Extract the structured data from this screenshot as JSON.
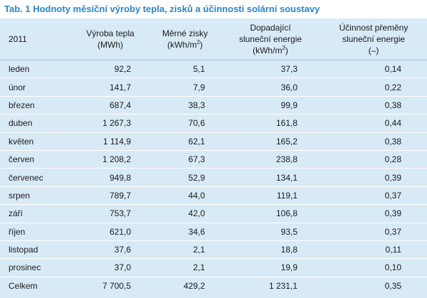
{
  "caption": "Tab. 1 Hodnoty měsíční výroby tepla, zisků a účinnosti solární soustavy",
  "header": {
    "year": "2011",
    "production_l1": "Výroba tepla",
    "production_l2": "(MWh)",
    "specific_l1": "Měrné zisky",
    "specific_l2_pre": "(kWh/m",
    "specific_l2_sup": "2",
    "specific_l2_post": ")",
    "irradiation_l1": "Dopadající",
    "irradiation_l2": "sluneční energie",
    "irradiation_l3_pre": "(kWh/m",
    "irradiation_l3_sup": "2",
    "irradiation_l3_post": ")",
    "efficiency_l1": "Účinnost přeměny",
    "efficiency_l2": "sluneční energie",
    "efficiency_l3": "(–)"
  },
  "rows": [
    {
      "month": "leden",
      "production": "92,2",
      "specific": "5,1",
      "irradiation": "37,3",
      "efficiency": "0,14"
    },
    {
      "month": "únor",
      "production": "141,7",
      "specific": "7,9",
      "irradiation": "36,0",
      "efficiency": "0,22"
    },
    {
      "month": "březen",
      "production": "687,4",
      "specific": "38,3",
      "irradiation": "99,9",
      "efficiency": "0,38"
    },
    {
      "month": "duben",
      "production": "1 267,3",
      "specific": "70,6",
      "irradiation": "161,8",
      "efficiency": "0,44"
    },
    {
      "month": "květen",
      "production": "1 114,9",
      "specific": "62,1",
      "irradiation": "165,2",
      "efficiency": "0,38"
    },
    {
      "month": "červen",
      "production": "1 208,2",
      "specific": "67,3",
      "irradiation": "238,8",
      "efficiency": "0,28"
    },
    {
      "month": "červenec",
      "production": "949,8",
      "specific": "52,9",
      "irradiation": "134,1",
      "efficiency": "0,39"
    },
    {
      "month": "srpen",
      "production": "789,7",
      "specific": "44,0",
      "irradiation": "119,1",
      "efficiency": "0,37"
    },
    {
      "month": "září",
      "production": "753,7",
      "specific": "42,0",
      "irradiation": "106,8",
      "efficiency": "0,39"
    },
    {
      "month": "říjen",
      "production": "621,0",
      "specific": "34,6",
      "irradiation": "93,5",
      "efficiency": "0,37"
    },
    {
      "month": "listopad",
      "production": "37,6",
      "specific": "2,1",
      "irradiation": "18,8",
      "efficiency": "0,11"
    },
    {
      "month": "prosinec",
      "production": "37,0",
      "specific": "2,1",
      "irradiation": "19,9",
      "efficiency": "0,10"
    },
    {
      "month": "Celkem",
      "production": "7 700,5",
      "specific": "429,2",
      "irradiation": "1 231,1",
      "efficiency": "0,35"
    }
  ],
  "colors": {
    "caption": "#2b86c6",
    "background": "#d8eaf6",
    "row_separator": "#ffffff"
  }
}
